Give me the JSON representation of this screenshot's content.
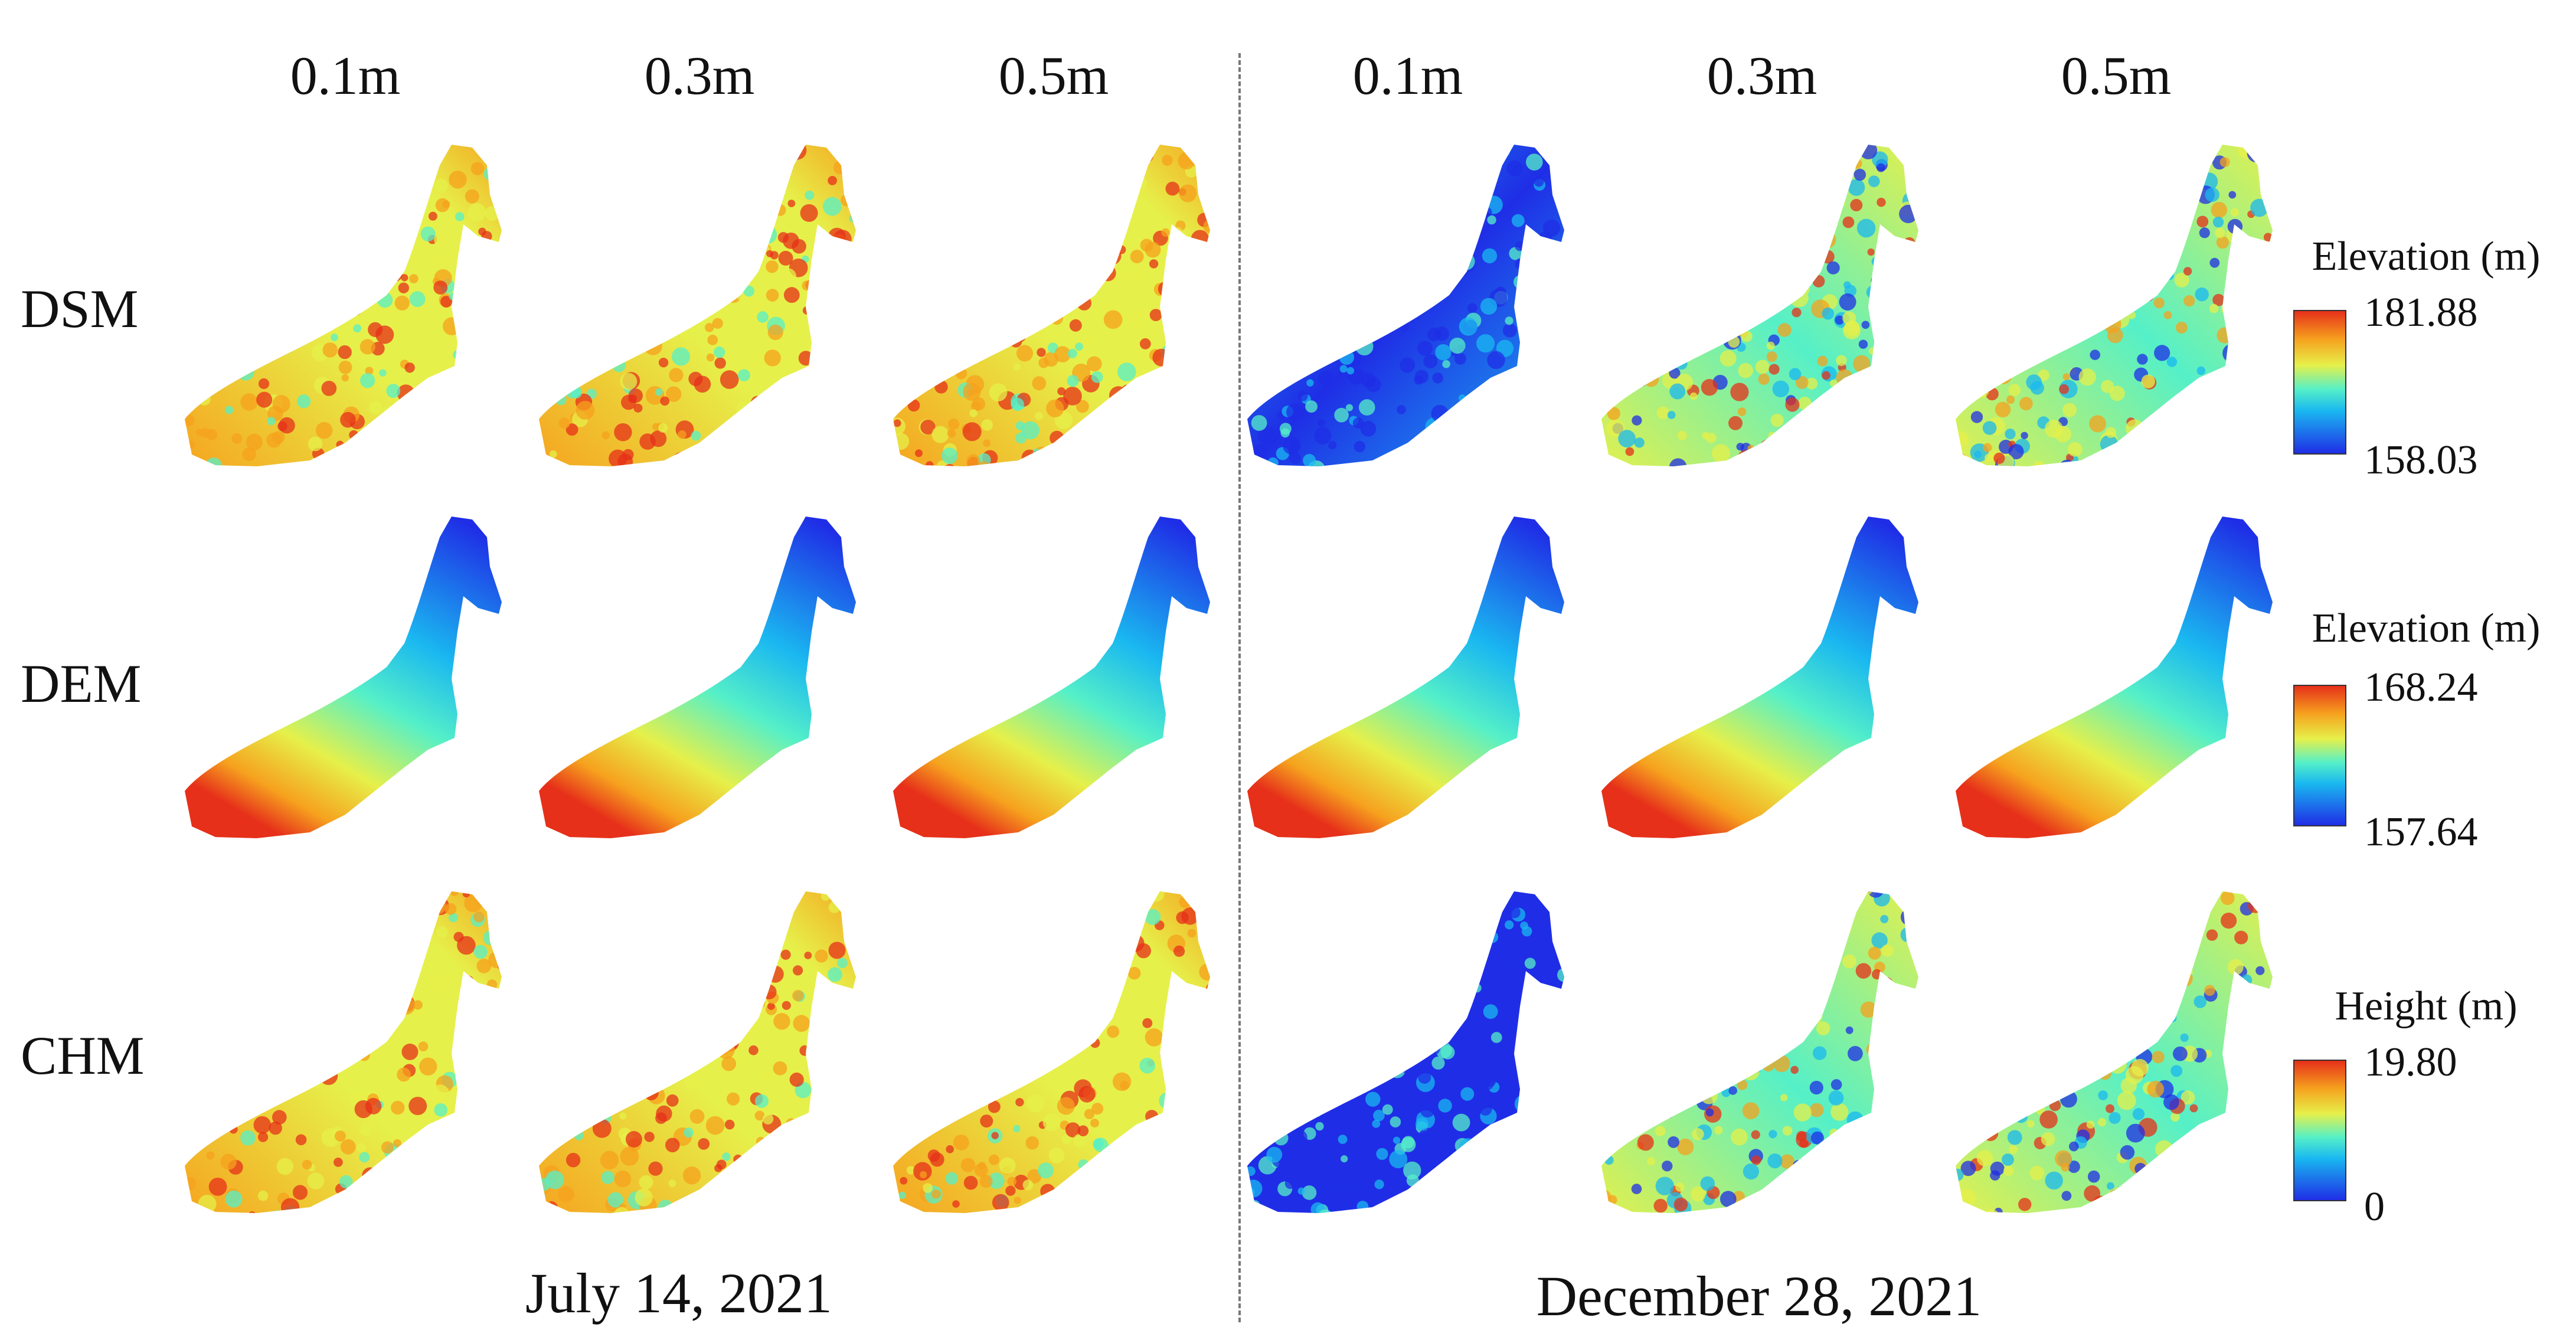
{
  "column_labels": [
    "0.1m",
    "0.3m",
    "0.5m",
    "0.1m",
    "0.3m",
    "0.5m"
  ],
  "row_labels": [
    "DSM",
    "DEM",
    "CHM"
  ],
  "dates": {
    "left": "July 14, 2021",
    "right": "December 28, 2021"
  },
  "legends": [
    {
      "title": "Elevation (m)",
      "max": "181.88",
      "min": "158.03"
    },
    {
      "title": "Elevation (m)",
      "max": "168.24",
      "min": "157.64"
    },
    {
      "title": "Height (m)",
      "max": "19.80",
      "min": "0"
    }
  ],
  "colormap": [
    "#1f2ee6",
    "#1ab8f0",
    "#55f0c8",
    "#e6f04a",
    "#f6a21e",
    "#e6301a"
  ]
}
